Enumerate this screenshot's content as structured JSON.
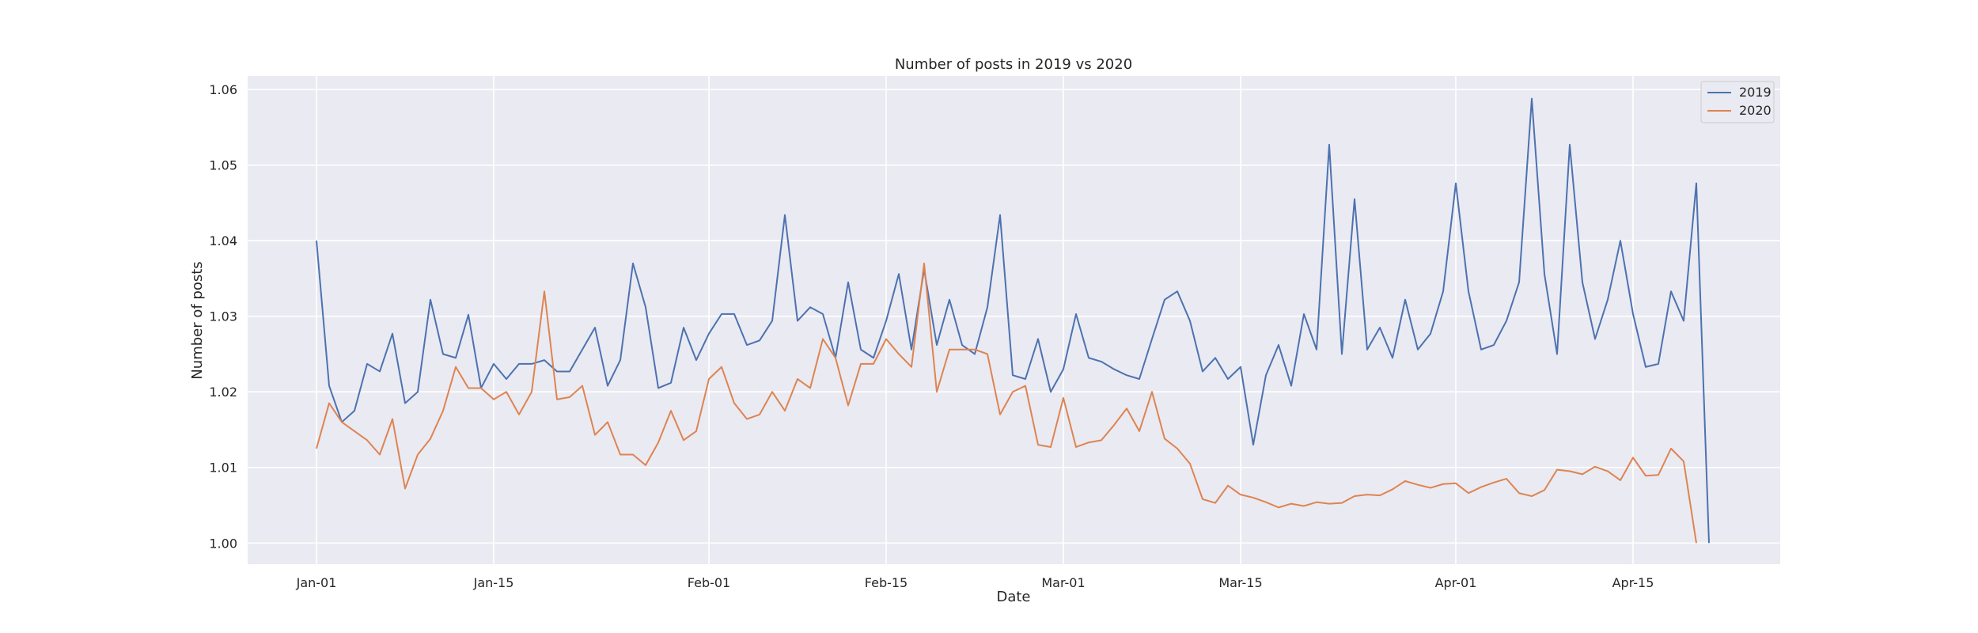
{
  "chart_data": {
    "type": "line",
    "title": "Number of posts in 2019 vs 2020",
    "xlabel": "Date",
    "ylabel": "Number of posts",
    "x_start": "Jan-01",
    "x_tick_labels": [
      "Jan-01",
      "Jan-15",
      "Feb-01",
      "Feb-15",
      "Mar-01",
      "Mar-15",
      "Apr-01",
      "Apr-15"
    ],
    "y_tick_labels": [
      "1.00",
      "1.01",
      "1.02",
      "1.03",
      "1.04",
      "1.05",
      "1.06"
    ],
    "ylim": [
      0.9972,
      1.0618
    ],
    "grid": true,
    "legend": "top-right",
    "series": [
      {
        "name": "2019",
        "color": "#4c72b0",
        "values": [
          1.04,
          1.0208,
          1.016,
          1.0175,
          1.0237,
          1.0227,
          1.0277,
          1.0185,
          1.02,
          1.0322,
          1.025,
          1.0245,
          1.0302,
          1.0205,
          1.0237,
          1.0217,
          1.0237,
          1.0237,
          1.0242,
          1.0227,
          1.0227,
          1.0256,
          1.0285,
          1.0208,
          1.0242,
          1.037,
          1.0312,
          1.0205,
          1.0212,
          1.0285,
          1.0242,
          1.0277,
          1.0303,
          1.0303,
          1.0262,
          1.0268,
          1.0294,
          1.0434,
          1.0294,
          1.0312,
          1.0303,
          1.0245,
          1.0345,
          1.0256,
          1.0245,
          1.0294,
          1.0356,
          1.0256,
          1.0362,
          1.0262,
          1.0322,
          1.0262,
          1.025,
          1.0312,
          1.0434,
          1.0222,
          1.0217,
          1.027,
          1.02,
          1.023,
          1.0303,
          1.0245,
          1.024,
          1.023,
          1.0222,
          1.0217,
          1.027,
          1.0322,
          1.0333,
          1.0294,
          1.0227,
          1.0245,
          1.0217,
          1.0233,
          1.013,
          1.0222,
          1.0262,
          1.0208,
          1.0303,
          1.0256,
          1.0527,
          1.025,
          1.0455,
          1.0256,
          1.0285,
          1.0245,
          1.0322,
          1.0256,
          1.0277,
          1.0333,
          1.0476,
          1.0333,
          1.0256,
          1.0262,
          1.0294,
          1.0345,
          1.0588,
          1.0356,
          1.025,
          1.0527,
          1.0345,
          1.027,
          1.0322,
          1.04,
          1.0303,
          1.0233,
          1.0237,
          1.0333,
          1.0294,
          1.0476,
          1.0
        ]
      },
      {
        "name": "2020",
        "color": "#dd8452",
        "values": [
          1.0125,
          1.0185,
          1.016,
          1.0148,
          1.0136,
          1.0117,
          1.0164,
          1.0072,
          1.0117,
          1.0138,
          1.0175,
          1.0233,
          1.0205,
          1.0205,
          1.019,
          1.02,
          1.017,
          1.02,
          1.0333,
          1.019,
          1.0193,
          1.0208,
          1.0143,
          1.016,
          1.0117,
          1.0117,
          1.0103,
          1.0133,
          1.0175,
          1.0136,
          1.0148,
          1.0217,
          1.0233,
          1.0185,
          1.0164,
          1.017,
          1.02,
          1.0175,
          1.0217,
          1.0205,
          1.027,
          1.0245,
          1.0182,
          1.0237,
          1.0237,
          1.027,
          1.025,
          1.0233,
          1.037,
          1.02,
          1.0256,
          1.0256,
          1.0256,
          1.025,
          1.017,
          1.02,
          1.0208,
          1.013,
          1.0127,
          1.0192,
          1.0127,
          1.0133,
          1.0136,
          1.0156,
          1.0178,
          1.0148,
          1.02,
          1.0138,
          1.0125,
          1.0105,
          1.0058,
          1.0053,
          1.0076,
          1.0064,
          1.006,
          1.0054,
          1.0047,
          1.0052,
          1.0049,
          1.0054,
          1.0052,
          1.0053,
          1.0062,
          1.0064,
          1.0063,
          1.0071,
          1.0082,
          1.0077,
          1.0073,
          1.0078,
          1.0079,
          1.0066,
          1.0074,
          1.008,
          1.0085,
          1.0066,
          1.0062,
          1.007,
          1.0097,
          1.0095,
          1.0091,
          1.0101,
          1.0095,
          1.0083,
          1.0113,
          1.0089,
          1.009,
          1.0125,
          1.0108,
          1.0
        ]
      }
    ]
  }
}
